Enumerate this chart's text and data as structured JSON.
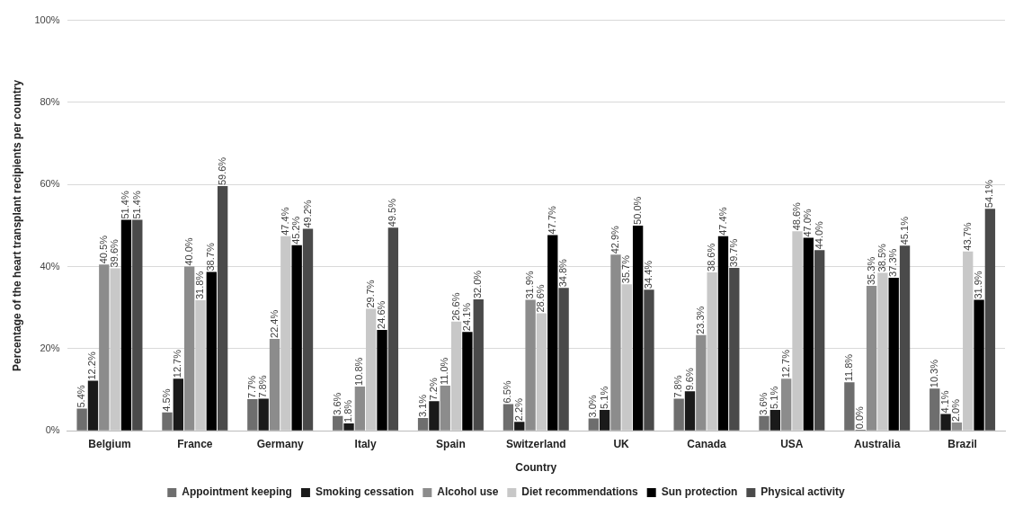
{
  "chart_data": {
    "type": "bar",
    "xlabel": "Country",
    "ylabel": "Percentage of the heart transplant recipients per country",
    "categories": [
      "Belgium",
      "France",
      "Germany",
      "Italy",
      "Spain",
      "Switzerland",
      "UK",
      "Canada",
      "USA",
      "Australia",
      "Brazil"
    ],
    "series": [
      {
        "name": "Appointment keeping",
        "color": "#6e6e6e",
        "values": [
          5.4,
          4.5,
          7.7,
          3.6,
          3.1,
          6.5,
          3.0,
          7.8,
          3.6,
          11.8,
          10.3
        ],
        "value_labels": [
          "5.4%",
          "4.5%",
          "7.7%",
          "3.6%",
          "3.1%",
          "6.5%",
          "3.0%",
          "7.8%",
          "3.6%",
          "11.8%",
          "10.3%"
        ]
      },
      {
        "name": "Smoking cessation",
        "color": "#1a1a1a",
        "values": [
          12.2,
          12.7,
          7.8,
          1.8,
          7.2,
          2.2,
          5.1,
          9.6,
          5.1,
          0.0,
          4.1
        ],
        "value_labels": [
          "12.2%",
          "12.7%",
          "7.8%",
          "1.8%",
          "7.2%",
          "2.2%",
          "5.1%",
          "9.6%",
          "5.1%",
          "0.0%",
          "4.1%"
        ]
      },
      {
        "name": "Alcohol use",
        "color": "#8c8c8c",
        "values": [
          40.5,
          40.0,
          22.4,
          10.8,
          11.0,
          31.9,
          42.9,
          23.3,
          12.7,
          35.3,
          2.0
        ],
        "value_labels": [
          "40.5%",
          "40.0%",
          "22.4%",
          "10.8%",
          "11.0%",
          "31.9%",
          "42.9%",
          "23.3%",
          "12.7%",
          "35.3%",
          "2.0%"
        ]
      },
      {
        "name": "Diet recommendations",
        "color": "#c8c8c8",
        "values": [
          39.6,
          31.8,
          47.4,
          29.7,
          26.6,
          28.6,
          35.7,
          38.6,
          48.6,
          38.5,
          43.7
        ],
        "value_labels": [
          "39.6%",
          "31.8%",
          "47.4%",
          "29.7%",
          "26.6%",
          "28.6%",
          "35.7%",
          "38.6%",
          "48.6%",
          "38.5%",
          "43.7%"
        ]
      },
      {
        "name": "Sun protection",
        "color": "#000000",
        "values": [
          51.4,
          38.7,
          45.2,
          24.6,
          24.1,
          47.7,
          50.0,
          47.4,
          47.0,
          37.3,
          31.9
        ],
        "value_labels": [
          "51.4%",
          "38.7%",
          "45.2%",
          "24.6%",
          "24.1%",
          "47.7%",
          "50.0%",
          "47.4%",
          "47.0%",
          "37.3%",
          "31.9%"
        ]
      },
      {
        "name": "Physical activity",
        "color": "#4a4a4a",
        "values": [
          51.4,
          59.6,
          49.2,
          49.5,
          32.0,
          34.8,
          34.4,
          39.7,
          44.0,
          45.1,
          54.1
        ],
        "value_labels": [
          "51.4%",
          "59.6%",
          "49.2%",
          "49.5%",
          "32.0%",
          "34.8%",
          "34.4%",
          "39.7%",
          "44.0%",
          "45.1%",
          "54.1%"
        ]
      }
    ],
    "ylim": [
      0,
      100
    ],
    "yticks": [
      {
        "value": 0,
        "label": "0%"
      },
      {
        "value": 20,
        "label": "20%"
      },
      {
        "value": 40,
        "label": "40%"
      },
      {
        "value": 60,
        "label": "60%"
      },
      {
        "value": 80,
        "label": "80%"
      },
      {
        "value": 100,
        "label": "100%"
      }
    ],
    "grid": "y",
    "legend": "bottom"
  }
}
